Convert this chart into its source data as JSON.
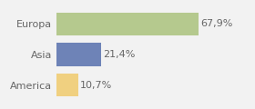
{
  "categories": [
    "Europa",
    "Asia",
    "America"
  ],
  "values": [
    67.9,
    21.4,
    10.7
  ],
  "labels": [
    "67,9%",
    "21,4%",
    "10,7%"
  ],
  "bar_colors": [
    "#b5c98e",
    "#6e83b7",
    "#f0d080"
  ],
  "background_color": "#f2f2f2",
  "xlim": [
    0,
    80
  ],
  "bar_height": 0.75,
  "label_fontsize": 8,
  "tick_fontsize": 8
}
